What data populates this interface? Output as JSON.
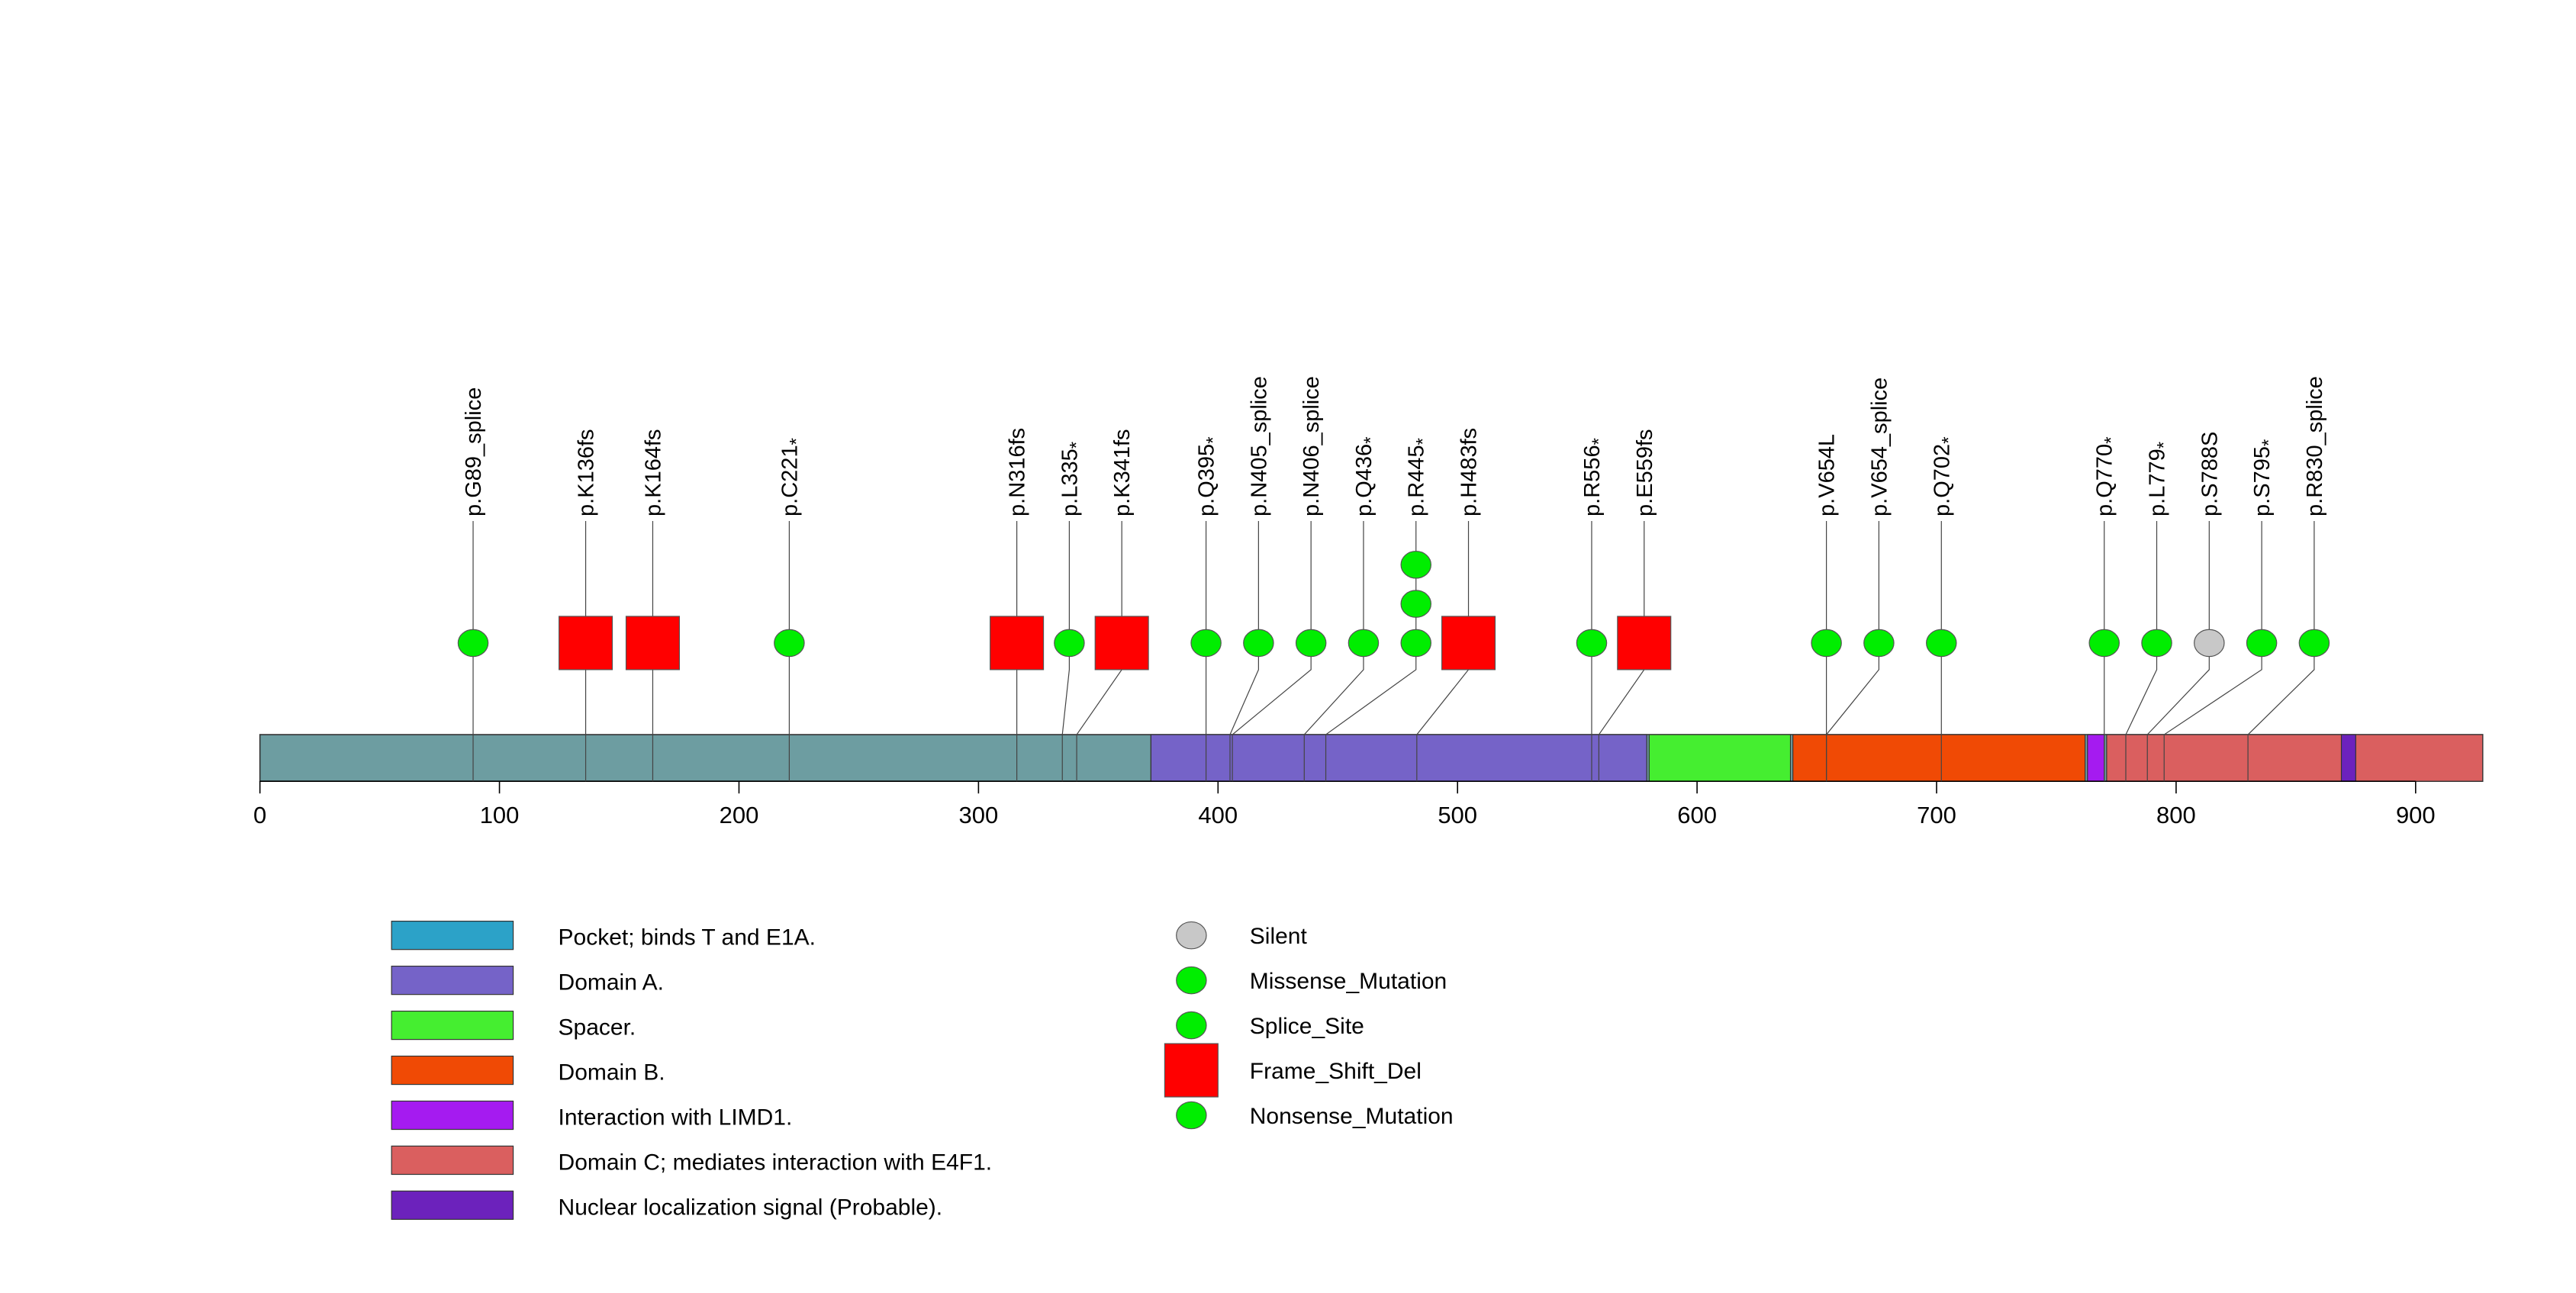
{
  "chart_data": {
    "type": "lollipop",
    "title": "",
    "xlabel": "",
    "ylabel": "",
    "xlim": [
      0,
      928
    ],
    "x_ticks": [
      0,
      100,
      200,
      300,
      400,
      500,
      600,
      700,
      800,
      900
    ],
    "protein_color": "#6d9da1",
    "domains": [
      {
        "name": "Pocket; binds T and E1A.",
        "start": 372,
        "end": 869,
        "color": "#6d9da1",
        "legend_color": "#2ca2c8"
      },
      {
        "name": "Domain A.",
        "start": 372,
        "end": 579,
        "color": "#7563c8"
      },
      {
        "name": "Spacer.",
        "start": 580,
        "end": 639,
        "color": "#45ee30"
      },
      {
        "name": "Domain B.",
        "start": 640,
        "end": 762,
        "color": "#f04a05"
      },
      {
        "name": "Interaction with LIMD1.",
        "start": 763,
        "end": 770,
        "color": "#a51bf0"
      },
      {
        "name": "Domain C; mediates interaction with E4F1.",
        "start": 771,
        "end": 928,
        "color": "#da5f5f"
      },
      {
        "name": "Nuclear localization signal (Probable).",
        "start": 869,
        "end": 875,
        "color": "#6c22bc"
      }
    ],
    "mutations": [
      {
        "label": "p.G89_splice",
        "star": "",
        "pos": 89,
        "type": "Splice_Site",
        "count": 1
      },
      {
        "label": "p.K136fs",
        "star": "",
        "pos": 136,
        "type": "Frame_Shift_Del",
        "count": 1
      },
      {
        "label": "p.K164fs",
        "star": "",
        "pos": 164,
        "type": "Frame_Shift_Del",
        "count": 1
      },
      {
        "label": "p.C221",
        "star": "*",
        "pos": 221,
        "type": "Nonsense_Mutation",
        "count": 1
      },
      {
        "label": "p.N316fs",
        "star": "",
        "pos": 316,
        "type": "Frame_Shift_Del",
        "count": 1
      },
      {
        "label": "p.L335",
        "star": "*",
        "pos": 335,
        "type": "Nonsense_Mutation",
        "count": 1
      },
      {
        "label": "p.K341fs",
        "star": "",
        "pos": 341,
        "type": "Frame_Shift_Del",
        "count": 1
      },
      {
        "label": "p.Q395",
        "star": "*",
        "pos": 395,
        "type": "Nonsense_Mutation",
        "count": 1
      },
      {
        "label": "p.N405_splice",
        "star": "",
        "pos": 405,
        "type": "Splice_Site",
        "count": 1
      },
      {
        "label": "p.N406_splice",
        "star": "",
        "pos": 406,
        "type": "Splice_Site",
        "count": 1
      },
      {
        "label": "p.Q436",
        "star": "*",
        "pos": 436,
        "type": "Nonsense_Mutation",
        "count": 1
      },
      {
        "label": "p.R445",
        "star": "*",
        "pos": 445,
        "type": "Nonsense_Mutation",
        "count": 3
      },
      {
        "label": "p.H483fs",
        "star": "",
        "pos": 483,
        "type": "Frame_Shift_Del",
        "count": 1
      },
      {
        "label": "p.R556",
        "star": "*",
        "pos": 556,
        "type": "Nonsense_Mutation",
        "count": 1
      },
      {
        "label": "p.E559fs",
        "star": "",
        "pos": 559,
        "type": "Frame_Shift_Del",
        "count": 1
      },
      {
        "label": "p.V654L",
        "star": "",
        "pos": 654,
        "type": "Missense_Mutation",
        "count": 1
      },
      {
        "label": "p.V654_splice",
        "star": "",
        "pos": 654,
        "type": "Splice_Site",
        "count": 1
      },
      {
        "label": "p.Q702",
        "star": "*",
        "pos": 702,
        "type": "Nonsense_Mutation",
        "count": 1
      },
      {
        "label": "p.Q770",
        "star": "*",
        "pos": 770,
        "type": "Nonsense_Mutation",
        "count": 1
      },
      {
        "label": "p.L779",
        "star": "*",
        "pos": 779,
        "type": "Nonsense_Mutation",
        "count": 1
      },
      {
        "label": "p.S788S",
        "star": "",
        "pos": 788,
        "type": "Silent",
        "count": 1
      },
      {
        "label": "p.S795",
        "star": "*",
        "pos": 795,
        "type": "Nonsense_Mutation",
        "count": 1
      },
      {
        "label": "p.R830_splice",
        "star": "",
        "pos": 830,
        "type": "Splice_Site",
        "count": 1
      }
    ],
    "mutation_legend": [
      {
        "name": "Silent",
        "shape": "circle",
        "color": "#c8c8c8"
      },
      {
        "name": "Missense_Mutation",
        "shape": "circle",
        "color": "#00ee00"
      },
      {
        "name": "Splice_Site",
        "shape": "circle",
        "color": "#00ee00"
      },
      {
        "name": "Frame_Shift_Del",
        "shape": "square",
        "color": "#ff0000"
      },
      {
        "name": "Nonsense_Mutation",
        "shape": "circle",
        "color": "#00ee00"
      }
    ]
  }
}
